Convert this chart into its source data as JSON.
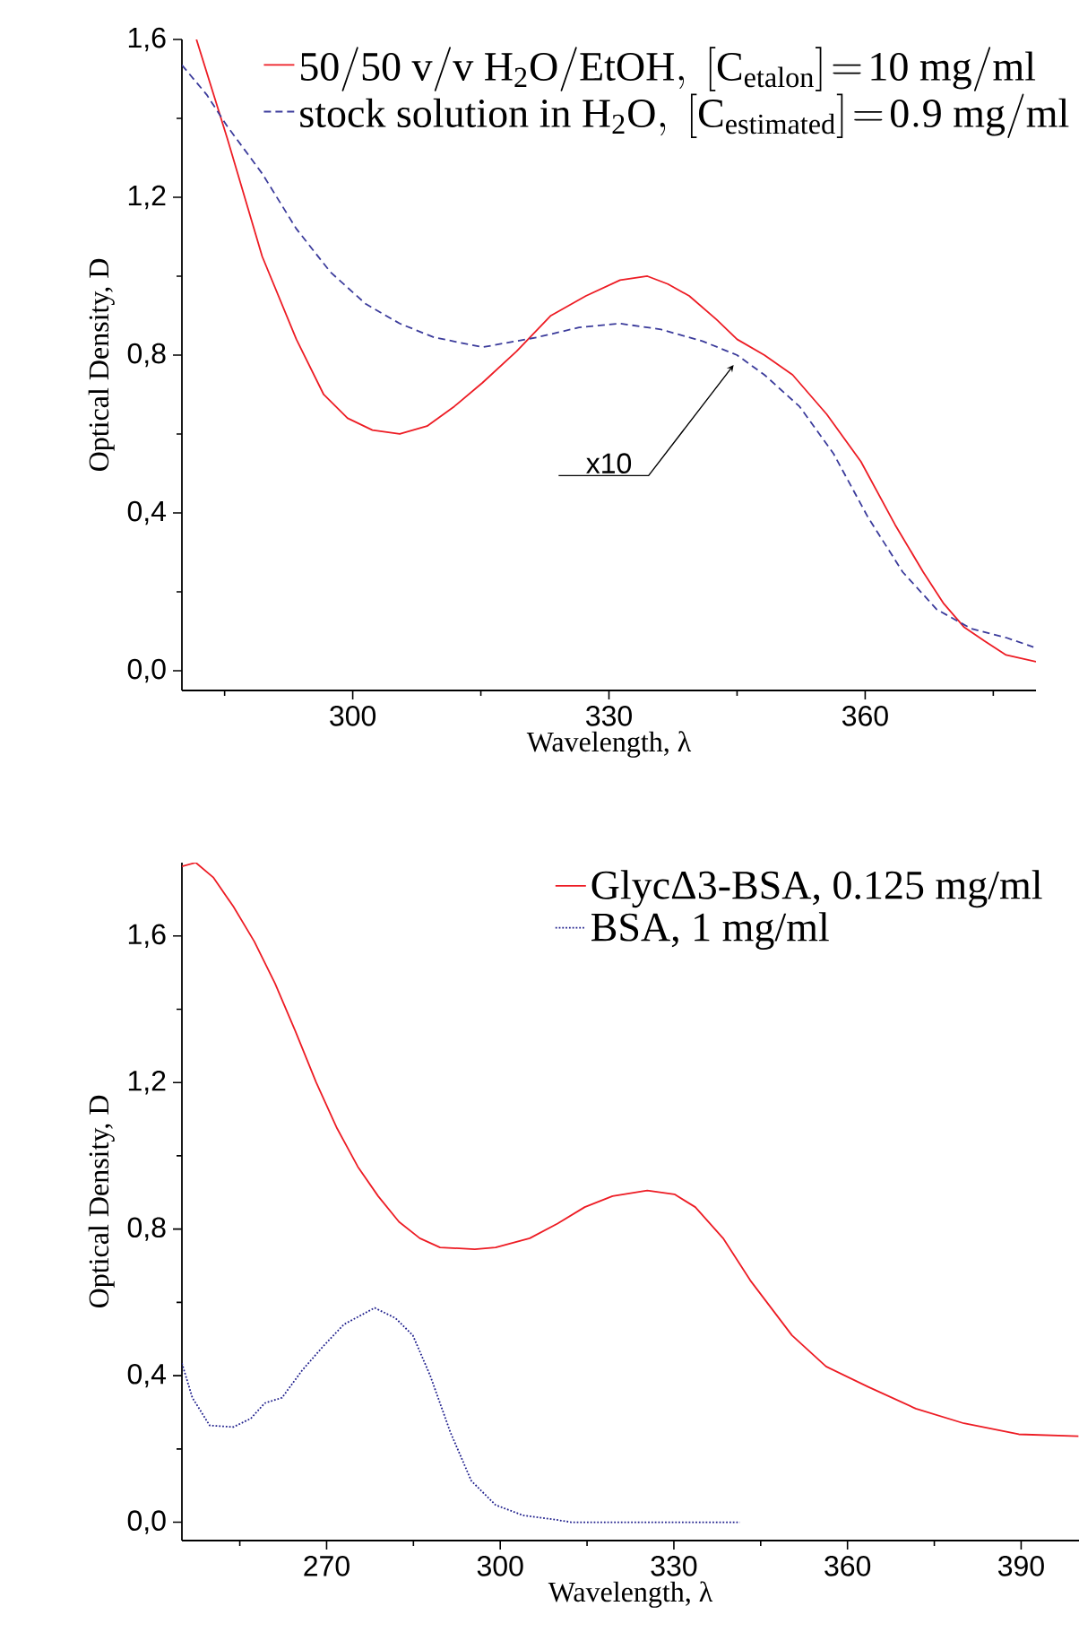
{
  "chart_data": [
    {
      "type": "line",
      "xlabel": "Wavelength, λ",
      "ylabel": "Optical Density, D",
      "legend": "top right",
      "xlim": [
        280,
        380
      ],
      "ylim": [
        -0.05,
        1.6
      ],
      "xticks": [
        {
          "value": 285,
          "label": null
        },
        300,
        {
          "value": 315,
          "label": null
        },
        330,
        {
          "value": 345,
          "label": null
        },
        360,
        {
          "value": 375,
          "label": null
        }
      ],
      "yticks": [
        {
          "value": 0,
          "label": "0,0"
        },
        {
          "value": 0.2,
          "label": null
        },
        {
          "value": 0.4,
          "label": "0,4"
        },
        {
          "value": 0.6,
          "label": null
        },
        {
          "value": 0.8,
          "label": "0,8"
        },
        {
          "value": 1.0,
          "label": null
        },
        {
          "value": 1.2,
          "label": "1,2"
        },
        {
          "value": 1.4,
          "label": null
        },
        {
          "value": 1.6,
          "label": "1,6"
        }
      ],
      "annotations": [
        "x10"
      ],
      "series": [
        {
          "name": "\\mathrm{50/50\\ v/v\\ H_{2}O/EtOH,\\ [C_{etalon}]\\!=\\!10\\ mg/ml}",
          "color": "#ed1c24",
          "line_style": "solid",
          "x": [
            281.7,
            285.3,
            289.4,
            293.4,
            296.6,
            299.4,
            302.3,
            305.5,
            308.7,
            311.9,
            315.2,
            319.2,
            323.2,
            327.3,
            331.3,
            334.5,
            336.9,
            339.4,
            342.6,
            345.0,
            348.2,
            351.5,
            355.5,
            359.5,
            363.5,
            366.8,
            369.2,
            371.6,
            374.0,
            376.5,
            380.0
          ],
          "values": [
            1.6,
            1.35,
            1.05,
            0.84,
            0.7,
            0.64,
            0.61,
            0.6,
            0.62,
            0.67,
            0.73,
            0.81,
            0.9,
            0.95,
            0.99,
            1.0,
            0.98,
            0.95,
            0.89,
            0.84,
            0.8,
            0.75,
            0.65,
            0.53,
            0.37,
            0.25,
            0.17,
            0.11,
            0.075,
            0.04,
            0.023
          ]
        },
        {
          "name": "\\mathrm{stock\\ solution\\ in\\ H_{2}O,\\ [C_{estimated}]\\!=\\!0.9\\ mg/ml}",
          "color": "#3b3b9b",
          "line_style": "dashed",
          "x": [
            280.0,
            282.9,
            285.3,
            289.4,
            293.4,
            297.4,
            301.5,
            305.5,
            309.5,
            315.2,
            321.6,
            326.5,
            331.3,
            336.1,
            341.0,
            345.0,
            348.2,
            352.3,
            356.3,
            360.3,
            364.4,
            368.4,
            372.4,
            376.5,
            379.7
          ],
          "values": [
            1.535,
            1.46,
            1.38,
            1.26,
            1.12,
            1.01,
            0.93,
            0.88,
            0.845,
            0.82,
            0.845,
            0.87,
            0.88,
            0.865,
            0.835,
            0.8,
            0.75,
            0.67,
            0.55,
            0.39,
            0.25,
            0.155,
            0.107,
            0.084,
            0.06
          ]
        }
      ]
    },
    {
      "type": "line",
      "xlabel": "Wavelength, λ",
      "ylabel": "Optical Density, D",
      "legend": "top right",
      "xlim": [
        245,
        400
      ],
      "ylim": [
        -0.05,
        1.8
      ],
      "xticks": [
        {
          "value": 255,
          "label": null
        },
        270,
        {
          "value": 285,
          "label": null
        },
        300,
        {
          "value": 315,
          "label": null
        },
        330,
        {
          "value": 345,
          "label": null
        },
        360,
        {
          "value": 375,
          "label": null
        },
        390
      ],
      "yticks": [
        {
          "value": 0,
          "label": "0,0"
        },
        {
          "value": 0.2,
          "label": null
        },
        {
          "value": 0.4,
          "label": "0,4"
        },
        {
          "value": 0.6,
          "label": null
        },
        {
          "value": 0.8,
          "label": "0,8"
        },
        {
          "value": 1.0,
          "label": null
        },
        {
          "value": 1.2,
          "label": "1,2"
        },
        {
          "value": 1.4,
          "label": null
        },
        {
          "value": 1.6,
          "label": "1,6"
        }
      ],
      "series": [
        {
          "name": "GlycΔ3-BSA, 0.125 mg/ml",
          "color": "#ed1c24",
          "line_style": "solid",
          "x": [
            245.0,
            247.4,
            250.4,
            253.9,
            257.5,
            261.1,
            264.6,
            268.2,
            271.8,
            275.4,
            278.9,
            282.5,
            286.1,
            289.6,
            295.6,
            299.2,
            305.1,
            309.9,
            314.6,
            319.4,
            325.4,
            330.1,
            333.7,
            338.5,
            343.2,
            350.4,
            356.3,
            363.5,
            371.8,
            380.1,
            389.6,
            399.9
          ],
          "values": [
            1.79,
            1.8,
            1.76,
            1.68,
            1.585,
            1.47,
            1.34,
            1.2,
            1.075,
            0.97,
            0.89,
            0.82,
            0.775,
            0.75,
            0.745,
            0.75,
            0.775,
            0.815,
            0.86,
            0.89,
            0.905,
            0.895,
            0.86,
            0.775,
            0.66,
            0.51,
            0.425,
            0.37,
            0.31,
            0.27,
            0.24,
            0.235
          ]
        },
        {
          "name": "BSA, 1 mg/ml",
          "color": "#1f1f8c",
          "line_style": "dotted",
          "x": [
            245.0,
            246.8,
            249.8,
            253.9,
            256.9,
            259.3,
            262.3,
            265.8,
            269.4,
            273.0,
            278.3,
            281.9,
            284.9,
            287.9,
            291.4,
            295.0,
            299.2,
            303.9,
            308.7,
            312.3,
            341.4
          ],
          "values": [
            0.434,
            0.34,
            0.264,
            0.26,
            0.283,
            0.325,
            0.34,
            0.415,
            0.48,
            0.54,
            0.585,
            0.557,
            0.51,
            0.4,
            0.245,
            0.113,
            0.047,
            0.019,
            0.009,
            0.0,
            0.0
          ]
        }
      ]
    }
  ]
}
